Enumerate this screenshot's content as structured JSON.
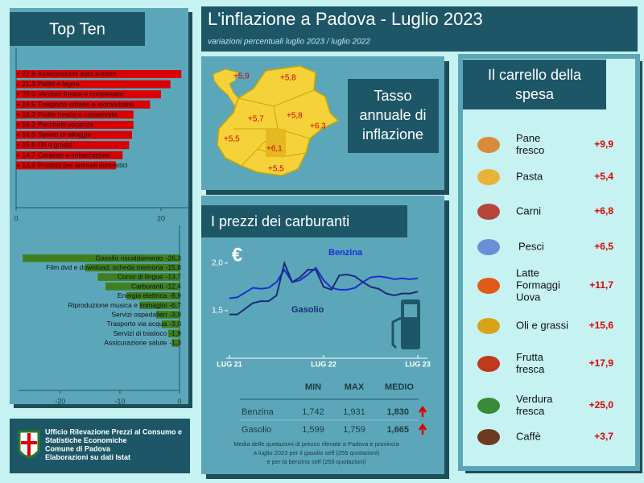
{
  "header": {
    "title": "L'inflazione a Padova - Luglio 2023",
    "subtitle": "variazioni percentuali luglio 2023 / luglio 2022"
  },
  "chart_data": [
    {
      "type": "bar",
      "title": "Top Ten",
      "categories": [
        "Assicurazioni auto e moto",
        "Pellet e legna",
        "Verdura fresca e conservata",
        "Trasporto urbano e extraurbano",
        "Frutta fresca e conservata",
        "Pacchetti vacanza",
        "Servizi di alloggio",
        "Oli e grassi",
        "Caravan e imbarcazioni",
        "Prodotti per animali domestici"
      ],
      "values": [
        22.8,
        21.3,
        20.0,
        18.5,
        16.2,
        16.2,
        16.0,
        15.6,
        14.7,
        13.8
      ],
      "value_labels": [
        "+ 22,8",
        "+ 21,3",
        "+ 20,0",
        "+ 18,5",
        "+ 16,2",
        "+ 16,2",
        "+ 16,0",
        "+ 15,6",
        "+ 14,7",
        "+ 13,8"
      ],
      "color": "#d90000",
      "xlim": [
        0,
        24
      ],
      "xticks": [
        0,
        20
      ]
    },
    {
      "type": "bar",
      "categories": [
        "Gasolio riscaldamento",
        "Film dvd  e download, scheda memoria",
        "Corso di lingue",
        "Carburanti",
        "Energia elettrica",
        "Riproduzione musica e immagini",
        "Servizi ospedalieri",
        "Trasporto via acqua",
        "Servizi di trasloco",
        "Assicurazione salute"
      ],
      "values": [
        -26.3,
        -15.8,
        -13.7,
        -12.4,
        -8.9,
        -6.7,
        -3.9,
        -3.0,
        -1.9,
        -1.3
      ],
      "value_labels": [
        "-26,3",
        "-15,8",
        "-13,7",
        "-12,4",
        "-8,9",
        "-6,7",
        "-3,9",
        "-3,0",
        "-1,9",
        "-1,3"
      ],
      "color": "#3f7f1f",
      "xlim": [
        -27,
        0
      ],
      "xticks": [
        -20,
        -10,
        0
      ]
    },
    {
      "type": "line",
      "title": "I prezzi dei carburanti",
      "unit_symbol": "€",
      "categories": [
        "LUG 21",
        null,
        null,
        null,
        null,
        null,
        null,
        null,
        null,
        null,
        null,
        null,
        "LUG 22",
        null,
        null,
        null,
        null,
        null,
        null,
        null,
        null,
        null,
        null,
        null,
        "LUG 23"
      ],
      "series": [
        {
          "name": "Benzina",
          "color": "#1a2fd6",
          "values": [
            1.63,
            1.64,
            1.69,
            1.74,
            1.73,
            1.74,
            1.8,
            1.93,
            1.8,
            1.82,
            1.88,
            1.95,
            1.82,
            1.74,
            1.72,
            1.72,
            1.74,
            1.8,
            1.85,
            1.86,
            1.85,
            1.83,
            1.84,
            1.83,
            1.84
          ]
        },
        {
          "name": "Gasolio",
          "color": "#1c2a7a",
          "values": [
            1.46,
            1.46,
            1.52,
            1.58,
            1.6,
            1.6,
            1.66,
            2.0,
            1.8,
            1.85,
            1.93,
            1.93,
            1.75,
            1.72,
            1.87,
            1.88,
            1.86,
            1.8,
            1.75,
            1.73,
            1.68,
            1.66,
            1.68,
            1.68,
            1.7
          ]
        }
      ],
      "ylim": [
        1.0,
        2.1
      ],
      "yticks": [
        {
          "value": 1.5,
          "label": "1,5"
        },
        {
          "value": 2.0,
          "label": "2,0"
        }
      ]
    }
  ],
  "fuel_table": {
    "columns": [
      "MIN",
      "MAX",
      "MEDIO"
    ],
    "rows": [
      [
        "Benzina",
        "1,742",
        "1,931",
        "1,830"
      ],
      [
        "Gasolio",
        "1,599",
        "1,759",
        "1,665"
      ]
    ],
    "note_lines": [
      "Media delle quotazioni di prezzo rilevate a Padova e provincia",
      "a luglio 2023 per il gasolio self (255 quotazioni)",
      "e per la benzina self (255 quotazioni)"
    ]
  },
  "map": {
    "title_lines": [
      "Tasso",
      "annuale di",
      "inflazione"
    ],
    "labels": [
      "+5,9",
      "+5,8",
      "+5,7",
      "+5,8",
      "+6,3",
      "+5,5",
      "+6,1",
      "+5,5"
    ]
  },
  "carrello": {
    "title_lines": [
      "Il carrello della",
      "spesa"
    ],
    "items": [
      {
        "name_lines": [
          "Pane",
          "fresco"
        ],
        "change": "+9,9"
      },
      {
        "name_lines": [
          "Pasta"
        ],
        "change": "+5,4"
      },
      {
        "name_lines": [
          "Carni"
        ],
        "change": "+6,8"
      },
      {
        "name_lines": [
          "Pesci"
        ],
        "change": "+6,5"
      },
      {
        "name_lines": [
          "Latte",
          "Formaggi",
          "Uova"
        ],
        "change": "+11,7"
      },
      {
        "name_lines": [
          "Oli e grassi"
        ],
        "change": "+15,6"
      },
      {
        "name_lines": [
          "Frutta",
          "fresca"
        ],
        "change": "+17,9"
      },
      {
        "name_lines": [
          "Verdura",
          "fresca"
        ],
        "change": "+25,0"
      },
      {
        "name_lines": [
          "Caffè"
        ],
        "change": "+3,7"
      }
    ]
  },
  "footer": {
    "lines": [
      "Ufficio Rilevazione Prezzi al Consumo e",
      "Statistiche Economiche",
      "Comune di Padova",
      "Elaborazioni su dati Istat"
    ]
  }
}
